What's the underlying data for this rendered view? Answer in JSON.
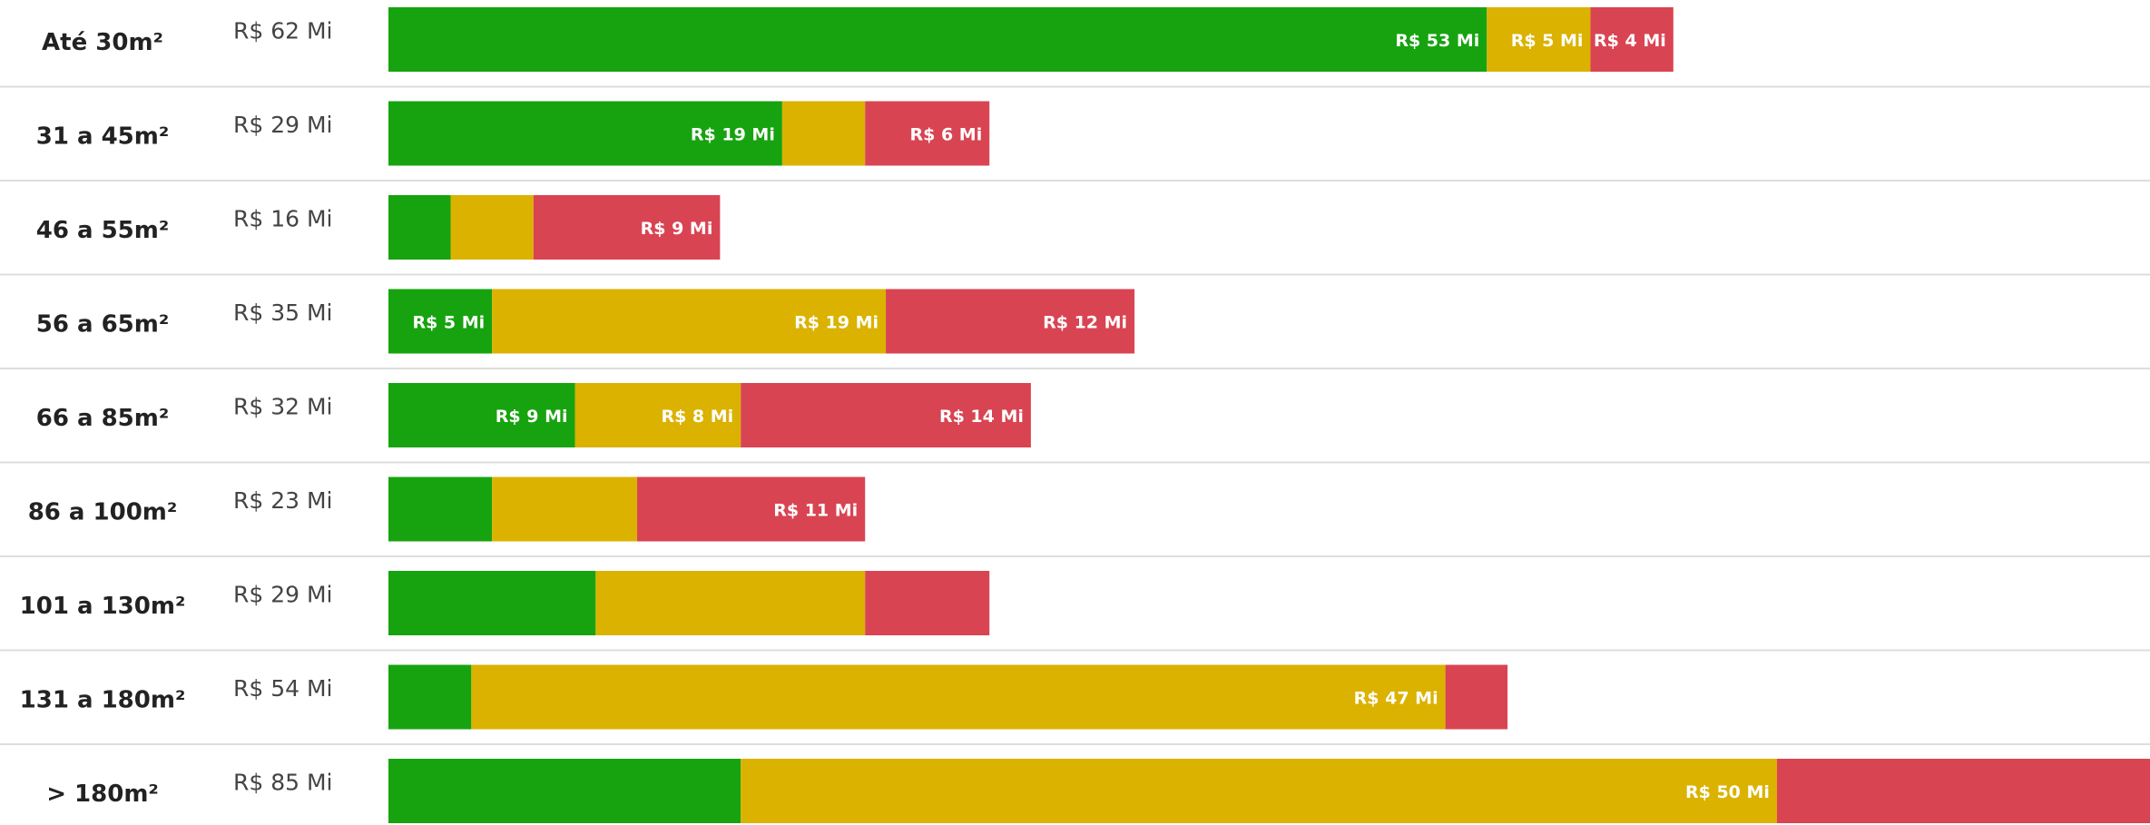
{
  "chart_data": {
    "type": "stacked-bar-horizontal",
    "categories": [
      "Até 30m²",
      "31 a 45m²",
      "46 a 55m²",
      "56 a 65m²",
      "66 a 85m²",
      "86 a 100m²",
      "101 a 130m²",
      "131 a 180m²",
      "> 180m²"
    ],
    "totals": [
      "R$ 62 Mi",
      "R$ 29 Mi",
      "R$ 16 Mi",
      "R$ 35 Mi",
      "R$ 32 Mi",
      "R$ 23 Mi",
      "R$ 29 Mi",
      "R$ 54 Mi",
      "R$ 85 Mi"
    ],
    "series": [
      {
        "color": "#17a30f",
        "values": [
          53,
          19,
          3,
          5,
          9,
          5,
          10,
          4,
          17
        ],
        "value_labels": [
          "R$ 53 Mi",
          "R$ 19 Mi",
          null,
          "R$ 5 Mi",
          "R$ 9 Mi",
          null,
          null,
          null,
          null
        ]
      },
      {
        "color": "#dbb200",
        "values": [
          5,
          4,
          4,
          19,
          8,
          7,
          13,
          47,
          50
        ],
        "value_labels": [
          "R$ 5 Mi",
          null,
          null,
          "R$ 19 Mi",
          "R$ 8 Mi",
          null,
          null,
          "R$ 47 Mi",
          "R$ 50 Mi"
        ]
      },
      {
        "color": "#d94452",
        "values": [
          4,
          6,
          9,
          12,
          14,
          11,
          6,
          3,
          18
        ],
        "value_labels": [
          "R$ 4 Mi",
          "R$ 6 Mi",
          "R$ 9 Mi",
          "R$ 12 Mi",
          "R$ 14 Mi",
          "R$ 11 Mi",
          null,
          null,
          null
        ]
      }
    ]
  }
}
